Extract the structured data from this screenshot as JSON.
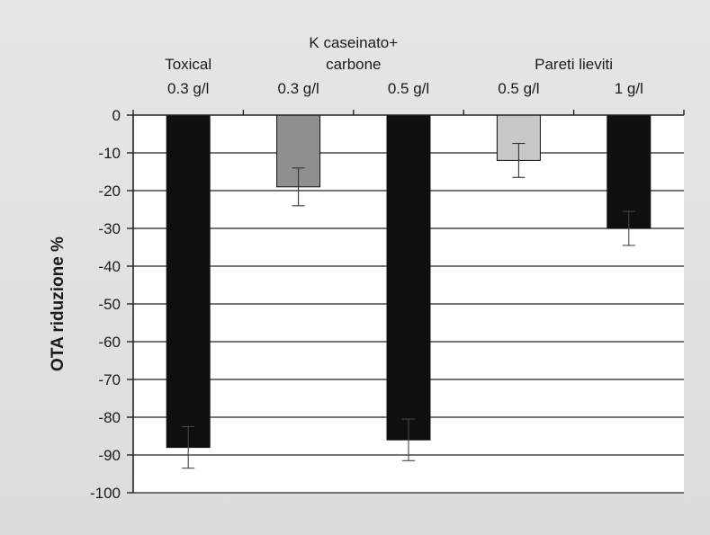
{
  "chart_data": {
    "type": "bar",
    "ylabel": "OTA riduzione %",
    "ylim": [
      -100,
      0
    ],
    "yticks": [
      0,
      -10,
      -20,
      -30,
      -40,
      -50,
      -60,
      -70,
      -80,
      -90,
      -100
    ],
    "grid": true,
    "group_labels": [
      {
        "text": "Toxical",
        "spans": [
          0,
          0
        ]
      },
      {
        "text": "K caseinato+\ncarbone",
        "spans": [
          1,
          2
        ]
      },
      {
        "text": "Pareti lieviti",
        "spans": [
          3,
          4
        ]
      }
    ],
    "categories": [
      "0.3 g/l",
      "0.3 g/l",
      "0.5 g/l",
      "0.5 g/l",
      "1 g/l"
    ],
    "values": [
      -88,
      -19,
      -86,
      -12,
      -30
    ],
    "errors": [
      5.5,
      5,
      5.5,
      4.5,
      4.5
    ],
    "colors": [
      "#0f0f0f",
      "#8f8f8f",
      "#0f0f0f",
      "#c8c8c8",
      "#0f0f0f"
    ]
  }
}
